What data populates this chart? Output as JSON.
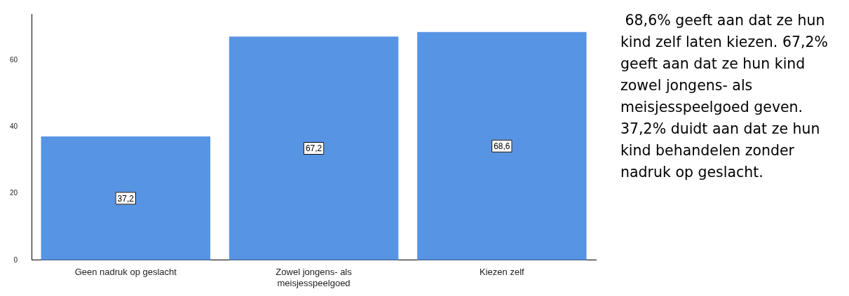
{
  "chart_data": {
    "type": "bar",
    "categories": [
      "Geen nadruk op geslacht",
      "Zowel jongens- als meisjesspeelgoed",
      "Kiezen zelf"
    ],
    "values": [
      37.2,
      67.2,
      68.6
    ],
    "value_labels": [
      "37,2",
      "67,2",
      "68,6"
    ],
    "color": "#5894e4",
    "ylim": [
      0,
      74
    ],
    "yticks": [
      0,
      20,
      40,
      60
    ],
    "grid": false,
    "legend": false,
    "annotations": [
      " 68,6% geeft aan dat ze hun kind zelf laten kiezen. 67,2% geeft aan dat ze hun kind zowel jongens- als meisjesspeelgoed geven. 37,2% duidt aan dat ze hun kind behandelen zonder nadruk op geslacht."
    ]
  }
}
